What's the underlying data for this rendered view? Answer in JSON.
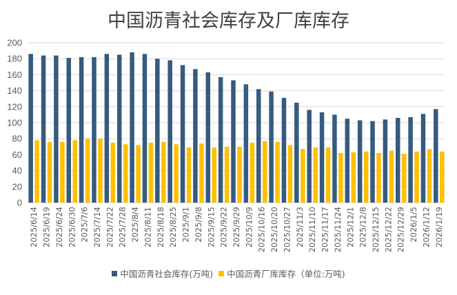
{
  "chart_data": {
    "type": "bar",
    "title": "中国沥青社会库存及厂库库存",
    "xlabel": "",
    "ylabel": "",
    "ylim": [
      0,
      200
    ],
    "yticks": [
      0,
      20,
      40,
      60,
      80,
      100,
      120,
      140,
      160,
      180,
      200
    ],
    "grid": true,
    "legend_position": "bottom",
    "categories": [
      "2025/6/14",
      "2025/6/19",
      "2025/6/24",
      "2025/6/30",
      "2025/7/6",
      "2025/7/14",
      "2025/7/22",
      "2025/7/28",
      "2025/8/4",
      "2025/8/11",
      "2025/8/18",
      "2025/8/25",
      "2025/9/1",
      "2025/9/8",
      "2025/9/15",
      "2025/9/22",
      "2025/9/29",
      "2025/10/9",
      "2025/10/16",
      "2025/10/20",
      "2025/10/27",
      "2025/11/3",
      "2025/11/10",
      "2025/11/17",
      "2025/11/24",
      "2025/12/1",
      "2025/12/8",
      "2025/12/15",
      "2025/12/22",
      "2025/12/29",
      "2026/1/5",
      "2026/1/12",
      "2026/1/19"
    ],
    "series": [
      {
        "name": "中国沥青社会库存(万吨)",
        "color": "#375a7f",
        "values": [
          186,
          184,
          184,
          181,
          182,
          182,
          186,
          185,
          188,
          186,
          180,
          178,
          172,
          167,
          163,
          157,
          153,
          148,
          142,
          139,
          131,
          125,
          116,
          113,
          110,
          105,
          103,
          102,
          104,
          106,
          107,
          111,
          117
        ]
      },
      {
        "name": "中国沥青厂库库存（单位:万吨)",
        "color": "#ffc000",
        "values": [
          78,
          76,
          76,
          78,
          80,
          80,
          75,
          73,
          72,
          75,
          76,
          73,
          69,
          74,
          69,
          70,
          70,
          75,
          77,
          76,
          72,
          67,
          69,
          69,
          62,
          63,
          64,
          62,
          65,
          61,
          64,
          67,
          64
        ]
      }
    ]
  }
}
